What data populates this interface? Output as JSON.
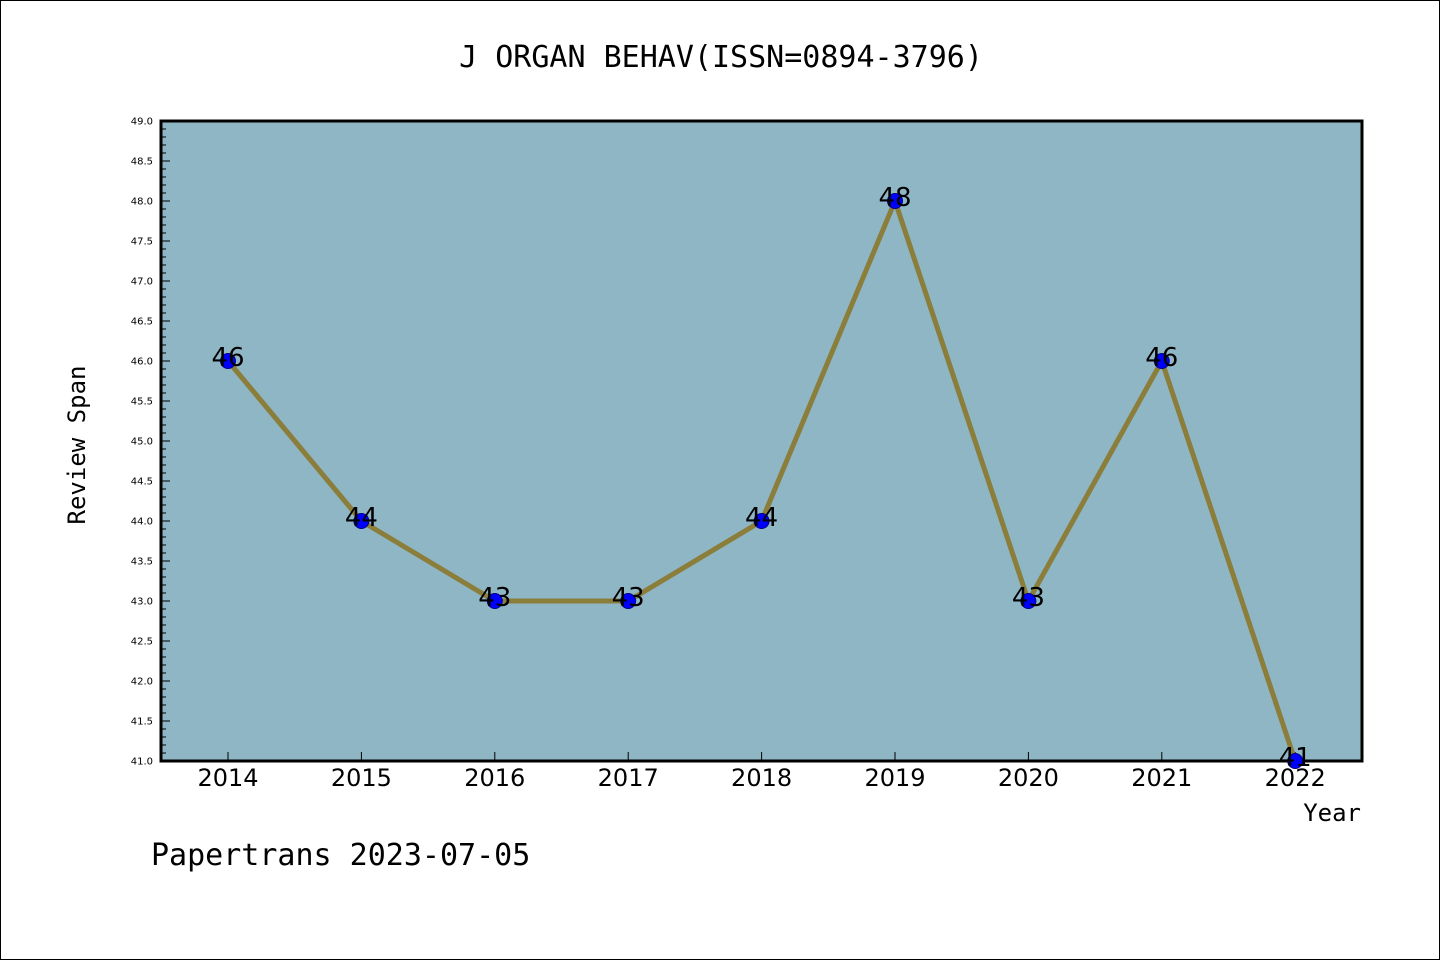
{
  "chart_data": {
    "type": "line",
    "title": "J ORGAN BEHAV(ISSN=0894-3796)",
    "xlabel": "Year",
    "ylabel": "Review Span",
    "categories": [
      "2014",
      "2015",
      "2016",
      "2017",
      "2018",
      "2019",
      "2020",
      "2021",
      "2022"
    ],
    "values": [
      46,
      44,
      43,
      43,
      44,
      48,
      43,
      46,
      41
    ],
    "data_labels": [
      "46",
      "44",
      "43",
      "43",
      "44",
      "48",
      "43",
      "46",
      "41"
    ],
    "ylim": [
      41.0,
      49.0
    ],
    "yticks": [
      "41.0",
      "41.5",
      "42.0",
      "42.5",
      "43.0",
      "43.5",
      "44.0",
      "44.5",
      "45.0",
      "45.5",
      "46.0",
      "46.5",
      "47.0",
      "47.5",
      "48.0",
      "48.5",
      "49.0"
    ],
    "grid": false,
    "legend": "none",
    "colors": {
      "plot_background": "#8fb6c4",
      "line": "#8b7d3a",
      "marker_fill": "#0000ff",
      "marker_stroke": "#00008b"
    }
  },
  "footer": {
    "text": "Papertrans 2023-07-05"
  }
}
